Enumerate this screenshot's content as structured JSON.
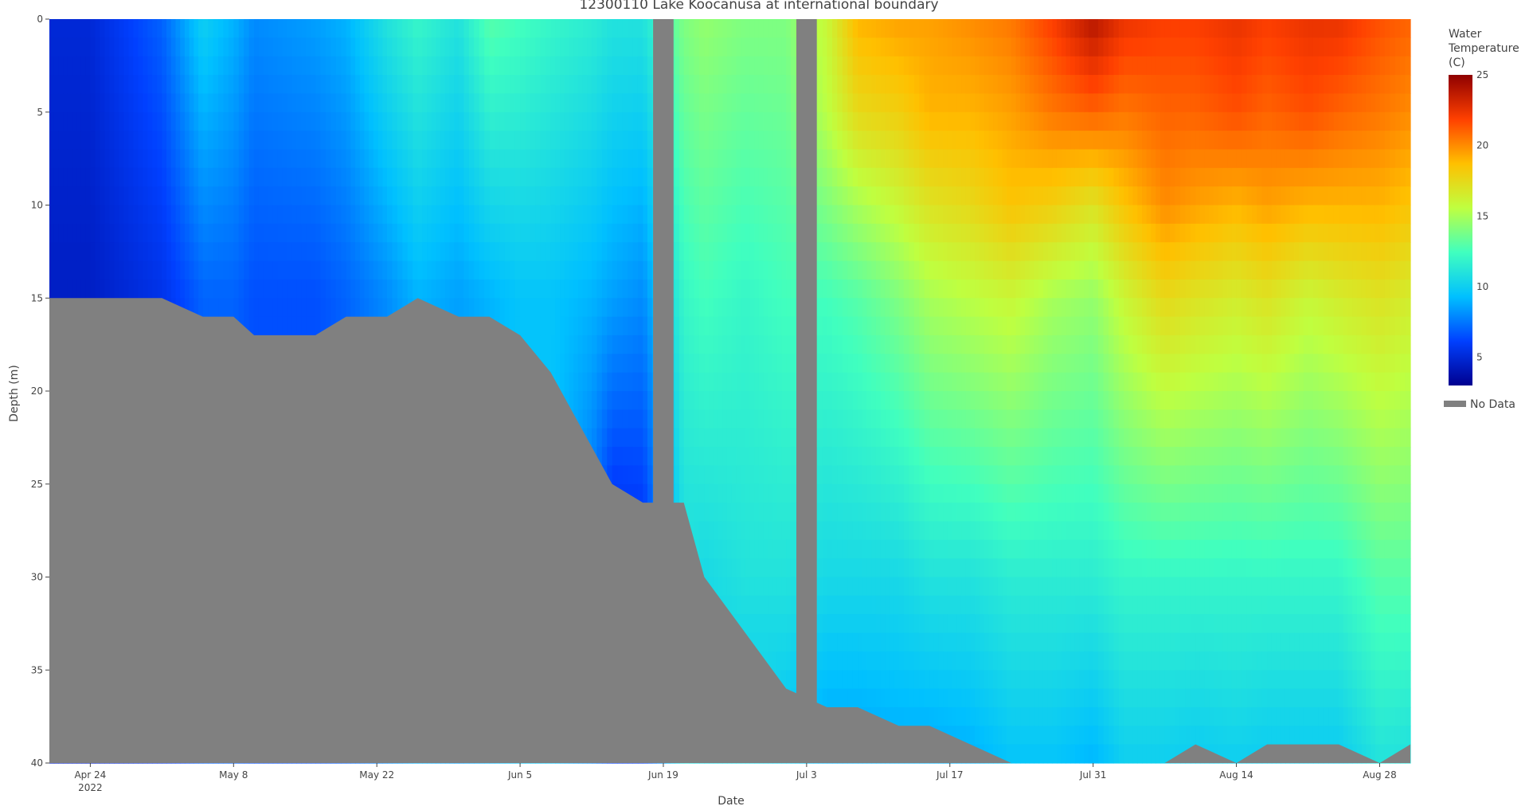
{
  "chart_data": {
    "type": "heatmap",
    "title": "12300110 Lake Koocanusa at international boundary",
    "xlabel": "Date",
    "ylabel": "Depth (m)",
    "y_reversed": true,
    "ylim": [
      0,
      40
    ],
    "yticks": [
      0,
      5,
      10,
      15,
      20,
      25,
      30,
      35,
      40
    ],
    "xlim": [
      "2022-04-20",
      "2022-08-31"
    ],
    "xticks": [
      {
        "date": "2022-04-24",
        "label": "Apr 24",
        "sublabel": "2022"
      },
      {
        "date": "2022-05-08",
        "label": "May 8",
        "sublabel": ""
      },
      {
        "date": "2022-05-22",
        "label": "May 22",
        "sublabel": ""
      },
      {
        "date": "2022-06-05",
        "label": "Jun 5",
        "sublabel": ""
      },
      {
        "date": "2022-06-19",
        "label": "Jun 19",
        "sublabel": ""
      },
      {
        "date": "2022-07-03",
        "label": "Jul 3",
        "sublabel": ""
      },
      {
        "date": "2022-07-17",
        "label": "Jul 17",
        "sublabel": ""
      },
      {
        "date": "2022-07-31",
        "label": "Jul 31",
        "sublabel": ""
      },
      {
        "date": "2022-08-14",
        "label": "Aug 14",
        "sublabel": ""
      },
      {
        "date": "2022-08-28",
        "label": "Aug 28",
        "sublabel": ""
      }
    ],
    "colorbar": {
      "title": [
        "Water",
        "Temperature",
        "(C)"
      ],
      "range": [
        3,
        25
      ],
      "ticks": [
        5,
        10,
        15,
        20,
        25
      ],
      "colorscale": [
        "#00008f",
        "#0040ff",
        "#00c0ff",
        "#40ffbf",
        "#bfff40",
        "#ffc000",
        "#ff4000",
        "#8f0000"
      ]
    },
    "nodata_color": "#808080",
    "legend": {
      "label": "No Data",
      "placement": "right"
    },
    "profiles": [
      {
        "date": "2022-04-20",
        "max_depth": 15,
        "temps": [
          [
            0,
            5.0
          ],
          [
            15,
            4.5
          ]
        ]
      },
      {
        "date": "2022-04-24",
        "max_depth": 15,
        "temps": [
          [
            0,
            5.0
          ],
          [
            15,
            4.5
          ]
        ]
      },
      {
        "date": "2022-05-01",
        "max_depth": 15,
        "temps": [
          [
            0,
            7.0
          ],
          [
            15,
            5.5
          ]
        ]
      },
      {
        "date": "2022-05-05",
        "max_depth": 16,
        "temps": [
          [
            0,
            10.0
          ],
          [
            15,
            7.0
          ]
        ]
      },
      {
        "date": "2022-05-08",
        "max_depth": 16,
        "temps": [
          [
            0,
            9.0
          ],
          [
            15,
            7.0
          ]
        ]
      },
      {
        "date": "2022-05-10",
        "max_depth": 17,
        "temps": [
          [
            0,
            8.0
          ],
          [
            15,
            6.5
          ]
        ]
      },
      {
        "date": "2022-05-16",
        "max_depth": 17,
        "temps": [
          [
            0,
            8.5
          ],
          [
            15,
            6.5
          ]
        ]
      },
      {
        "date": "2022-05-19",
        "max_depth": 16,
        "temps": [
          [
            0,
            9.0
          ],
          [
            15,
            7.0
          ]
        ]
      },
      {
        "date": "2022-05-23",
        "max_depth": 16,
        "temps": [
          [
            0,
            11.0
          ],
          [
            15,
            8.0
          ]
        ]
      },
      {
        "date": "2022-05-26",
        "max_depth": 15,
        "temps": [
          [
            0,
            12.0
          ],
          [
            15,
            9.0
          ]
        ]
      },
      {
        "date": "2022-05-30",
        "max_depth": 16,
        "temps": [
          [
            0,
            11.0
          ],
          [
            15,
            8.5
          ]
        ]
      },
      {
        "date": "2022-06-02",
        "max_depth": 16,
        "temps": [
          [
            0,
            13.0
          ],
          [
            15,
            9.0
          ]
        ]
      },
      {
        "date": "2022-06-05",
        "max_depth": 17,
        "temps": [
          [
            0,
            12.5
          ],
          [
            15,
            9.5
          ]
        ]
      },
      {
        "date": "2022-06-08",
        "max_depth": 19,
        "temps": [
          [
            0,
            12.0
          ],
          [
            15,
            9.5
          ]
        ]
      },
      {
        "date": "2022-06-12",
        "max_depth": 23,
        "temps": [
          [
            0,
            11.5
          ],
          [
            15,
            9.0
          ],
          [
            23,
            8.0
          ]
        ]
      },
      {
        "date": "2022-06-14",
        "max_depth": 25,
        "temps": [
          [
            0,
            11.0
          ],
          [
            15,
            8.5
          ],
          [
            25,
            6.0
          ]
        ]
      },
      {
        "date": "2022-06-17",
        "max_depth": 26,
        "temps": [
          [
            0,
            11.0
          ],
          [
            15,
            8.0
          ],
          [
            26,
            6.0
          ]
        ]
      },
      {
        "date": "2022-06-21",
        "max_depth": 26,
        "temps": [
          [
            0,
            14.0
          ],
          [
            15,
            12.0
          ],
          [
            26,
            11.0
          ]
        ]
      },
      {
        "date": "2022-06-23",
        "max_depth": 30,
        "temps": [
          [
            0,
            14.5
          ],
          [
            15,
            12.5
          ],
          [
            30,
            10.5
          ]
        ]
      },
      {
        "date": "2022-06-27",
        "max_depth": 33,
        "temps": [
          [
            0,
            14.0
          ],
          [
            15,
            12.0
          ],
          [
            30,
            11.0
          ],
          [
            33,
            10.5
          ]
        ]
      },
      {
        "date": "2022-07-01",
        "max_depth": 36,
        "temps": [
          [
            0,
            14.0
          ],
          [
            15,
            12.5
          ],
          [
            30,
            11.0
          ],
          [
            36,
            10.0
          ]
        ]
      },
      {
        "date": "2022-07-05",
        "max_depth": 37,
        "temps": [
          [
            0,
            16.0
          ],
          [
            5,
            15.5
          ],
          [
            15,
            12.5
          ],
          [
            30,
            10.5
          ],
          [
            37,
            9.0
          ]
        ]
      },
      {
        "date": "2022-07-08",
        "max_depth": 37,
        "temps": [
          [
            0,
            19.0
          ],
          [
            5,
            17.5
          ],
          [
            10,
            15.0
          ],
          [
            15,
            13.0
          ],
          [
            30,
            10.5
          ],
          [
            37,
            9.0
          ]
        ]
      },
      {
        "date": "2022-07-12",
        "max_depth": 38,
        "temps": [
          [
            0,
            19.5
          ],
          [
            5,
            18.0
          ],
          [
            10,
            16.0
          ],
          [
            15,
            14.0
          ],
          [
            30,
            10.5
          ],
          [
            38,
            9.0
          ]
        ]
      },
      {
        "date": "2022-07-15",
        "max_depth": 38,
        "temps": [
          [
            0,
            19.5
          ],
          [
            5,
            19.0
          ],
          [
            10,
            17.0
          ],
          [
            15,
            15.0
          ],
          [
            30,
            11.0
          ],
          [
            38,
            9.0
          ]
        ]
      },
      {
        "date": "2022-07-19",
        "max_depth": 39,
        "temps": [
          [
            0,
            20.0
          ],
          [
            5,
            19.0
          ],
          [
            10,
            17.5
          ],
          [
            15,
            15.5
          ],
          [
            30,
            11.0
          ],
          [
            39,
            9.0
          ]
        ]
      },
      {
        "date": "2022-07-23",
        "max_depth": 40,
        "temps": [
          [
            0,
            20.5
          ],
          [
            5,
            19.5
          ],
          [
            10,
            18.5
          ],
          [
            15,
            16.0
          ],
          [
            30,
            11.5
          ],
          [
            40,
            9.5
          ]
        ]
      },
      {
        "date": "2022-07-27",
        "max_depth": 40,
        "temps": [
          [
            0,
            22.0
          ],
          [
            5,
            20.5
          ],
          [
            10,
            18.0
          ],
          [
            15,
            15.0
          ],
          [
            30,
            11.5
          ],
          [
            40,
            9.5
          ]
        ]
      },
      {
        "date": "2022-07-31",
        "max_depth": 40,
        "temps": [
          [
            0,
            24.0
          ],
          [
            5,
            21.0
          ],
          [
            10,
            17.0
          ],
          [
            15,
            14.5
          ],
          [
            30,
            11.5
          ],
          [
            40,
            9.0
          ]
        ]
      },
      {
        "date": "2022-08-03",
        "max_depth": 40,
        "temps": [
          [
            0,
            22.5
          ],
          [
            5,
            20.5
          ],
          [
            10,
            18.5
          ],
          [
            15,
            16.0
          ],
          [
            30,
            12.0
          ],
          [
            40,
            10.0
          ]
        ]
      },
      {
        "date": "2022-08-07",
        "max_depth": 40,
        "temps": [
          [
            0,
            22.0
          ],
          [
            5,
            21.0
          ],
          [
            10,
            20.0
          ],
          [
            15,
            17.5
          ],
          [
            30,
            12.0
          ],
          [
            40,
            10.0
          ]
        ]
      },
      {
        "date": "2022-08-10",
        "max_depth": 39,
        "temps": [
          [
            0,
            22.0
          ],
          [
            5,
            21.0
          ],
          [
            10,
            19.5
          ],
          [
            15,
            17.0
          ],
          [
            30,
            12.0
          ],
          [
            39,
            10.0
          ]
        ]
      },
      {
        "date": "2022-08-14",
        "max_depth": 40,
        "temps": [
          [
            0,
            22.5
          ],
          [
            5,
            21.5
          ],
          [
            10,
            19.0
          ],
          [
            15,
            16.5
          ],
          [
            30,
            12.0
          ],
          [
            40,
            10.0
          ]
        ]
      },
      {
        "date": "2022-08-17",
        "max_depth": 39,
        "temps": [
          [
            0,
            22.0
          ],
          [
            5,
            21.0
          ],
          [
            10,
            19.5
          ],
          [
            15,
            17.0
          ],
          [
            30,
            12.0
          ],
          [
            39,
            10.0
          ]
        ]
      },
      {
        "date": "2022-08-21",
        "max_depth": 39,
        "temps": [
          [
            0,
            22.5
          ],
          [
            5,
            21.5
          ],
          [
            10,
            19.0
          ],
          [
            15,
            16.0
          ],
          [
            30,
            12.0
          ],
          [
            39,
            10.0
          ]
        ]
      },
      {
        "date": "2022-08-24",
        "max_depth": 39,
        "temps": [
          [
            0,
            22.5
          ],
          [
            5,
            21.0
          ],
          [
            10,
            19.0
          ],
          [
            15,
            16.5
          ],
          [
            30,
            12.0
          ],
          [
            39,
            10.0
          ]
        ]
      },
      {
        "date": "2022-08-28",
        "max_depth": 40,
        "temps": [
          [
            0,
            21.5
          ],
          [
            5,
            20.5
          ],
          [
            10,
            19.0
          ],
          [
            15,
            17.0
          ],
          [
            30,
            13.0
          ],
          [
            40,
            11.0
          ]
        ]
      },
      {
        "date": "2022-08-31",
        "max_depth": 39,
        "temps": [
          [
            0,
            21.0
          ],
          [
            5,
            20.0
          ],
          [
            10,
            18.5
          ],
          [
            15,
            16.5
          ],
          [
            30,
            13.0
          ],
          [
            39,
            11.0
          ]
        ]
      }
    ],
    "gaps": [
      {
        "start": "2022-06-18",
        "end": "2022-06-20"
      },
      {
        "start": "2022-07-02",
        "end": "2022-07-04"
      }
    ]
  }
}
